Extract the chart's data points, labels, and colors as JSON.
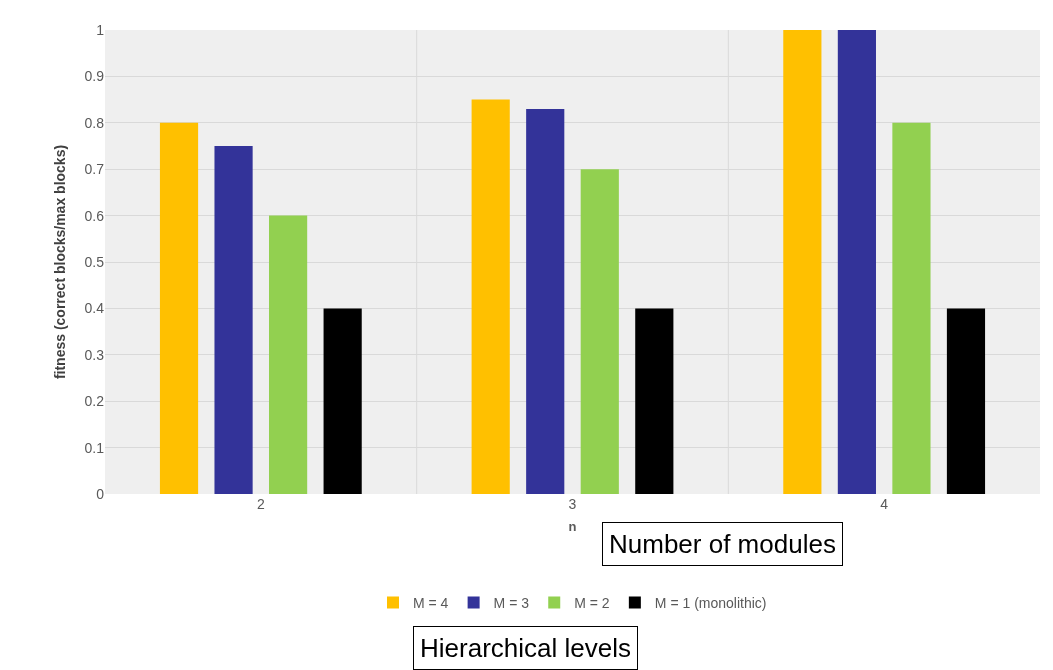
{
  "chart_data": {
    "type": "bar",
    "xlabel": "n",
    "ylabel": "fitness (correct blocks/max blocks)",
    "categories": [
      "2",
      "3",
      "4"
    ],
    "series": [
      {
        "name": "M = 4",
        "color": "#ffc000",
        "values": [
          0.8,
          0.85,
          1
        ]
      },
      {
        "name": "M = 3",
        "color": "#333399",
        "values": [
          0.75,
          0.83,
          1
        ]
      },
      {
        "name": "M = 2",
        "color": "#92d050",
        "values": [
          0.6,
          0.7,
          0.8
        ]
      },
      {
        "name": "M = 1 (monolithic)",
        "color": "#000000",
        "values": [
          0.4,
          0.4,
          0.4
        ]
      }
    ],
    "ylim": [
      0,
      1
    ],
    "yticks": [
      0,
      0.1,
      0.2,
      0.3,
      0.4,
      0.5,
      0.6,
      0.7,
      0.8,
      0.9,
      1
    ],
    "grid": true,
    "legend": "bottom",
    "annotations": [
      "Number of modules",
      "Hierarchical levels"
    ]
  }
}
